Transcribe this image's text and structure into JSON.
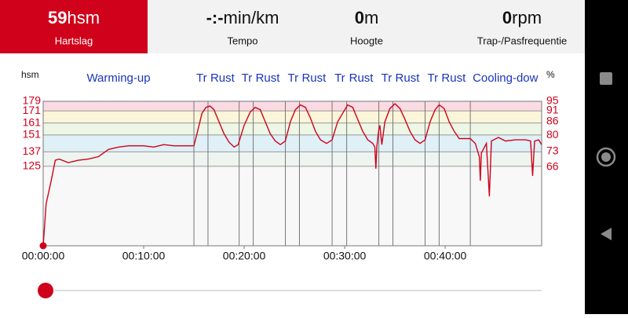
{
  "header": {
    "stats": [
      {
        "value": "59",
        "unit": "hsm",
        "label": "Hartslag"
      },
      {
        "value": "-:-",
        "unit": "min/km",
        "label": "Tempo"
      },
      {
        "value": "0",
        "unit": "m",
        "label": "Hoogte"
      },
      {
        "value": "0",
        "unit": "rpm",
        "label": "Trap-/Pasfrequentie"
      }
    ]
  },
  "chart_data": {
    "type": "line",
    "ylabel": "hsm",
    "y2label": "%",
    "xlim": [
      0,
      49.6
    ],
    "ylim": [
      59,
      179
    ],
    "y2lim": [
      31.3,
      95
    ],
    "xticks": [
      {
        "value": 0,
        "label": "00:00:00"
      },
      {
        "value": 10,
        "label": "00:10:00"
      },
      {
        "value": 20,
        "label": "00:20:00"
      },
      {
        "value": 30,
        "label": "00:30:00"
      },
      {
        "value": 40,
        "label": "00:40:00"
      }
    ],
    "yticks": [
      125,
      137,
      151,
      161,
      171,
      179
    ],
    "y2ticks": [
      66,
      73,
      80,
      86,
      91,
      95
    ],
    "zone_colors": [
      "#f8f8f8",
      "#eef4f0",
      "#dff0f7",
      "#eef6e6",
      "#fbf5d9",
      "#fbdbe3"
    ],
    "segments": [
      {
        "label": "Warming-up",
        "start": 0
      },
      {
        "label": "Tr",
        "start": 15.0
      },
      {
        "label": "Rust",
        "start": 16.4
      },
      {
        "label": "Tr",
        "start": 19.5
      },
      {
        "label": "Rust",
        "start": 20.9
      },
      {
        "label": "Tr",
        "start": 24.1
      },
      {
        "label": "Rust",
        "start": 25.5
      },
      {
        "label": "Tr",
        "start": 28.75
      },
      {
        "label": "Rust",
        "start": 30.2
      },
      {
        "label": "Tr",
        "start": 33.4
      },
      {
        "label": "Rust",
        "start": 34.8
      },
      {
        "label": "Tr",
        "start": 38.0
      },
      {
        "label": "Rust",
        "start": 39.4
      },
      {
        "label": "Cooling-dow",
        "start": 42.5
      }
    ],
    "x": [
      0,
      0.3,
      0.8,
      1.2,
      1.6,
      2.5,
      3.5,
      4.5,
      5.5,
      6,
      6.5,
      7.5,
      8.5,
      10,
      11,
      12,
      13,
      14,
      15,
      15.3,
      15.8,
      16.2,
      16.6,
      17,
      17.5,
      18,
      18.5,
      19,
      19.4,
      20,
      20.6,
      21.1,
      21.6,
      22.1,
      22.6,
      23.1,
      23.6,
      24.1,
      24.6,
      25.1,
      25.6,
      26.1,
      26.6,
      27.1,
      27.6,
      28.2,
      28.75,
      29.3,
      29.8,
      30.3,
      30.8,
      31.3,
      31.8,
      32.3,
      32.8,
      33.0,
      33.1,
      33.2,
      33.4,
      33.5,
      33.7,
      34,
      34.5,
      35,
      35.5,
      36,
      36.5,
      37,
      37.5,
      38,
      38.5,
      39,
      39.4,
      39.9,
      40.4,
      40.9,
      41.4,
      41.9,
      42.5,
      43,
      43.4,
      43.5,
      43.6,
      44.1,
      44.4,
      44.6,
      45.3,
      46,
      47,
      48,
      48.5,
      48.7,
      48.9,
      49.3,
      49.6
    ],
    "series": [
      {
        "name": "Hartslag",
        "color": "#d0021b",
        "values": [
          59,
          94,
          113,
          130,
          131,
          128,
          130,
          131,
          133,
          136,
          139,
          141,
          142,
          142,
          141,
          143,
          142,
          142,
          142,
          152,
          169,
          174,
          175,
          172,
          162,
          152,
          145,
          141,
          143,
          159,
          170,
          174,
          172,
          162,
          152,
          146,
          143,
          146,
          162,
          172,
          176,
          174,
          165,
          154,
          147,
          144,
          147,
          162,
          169,
          176,
          174,
          164,
          154,
          147,
          144,
          141,
          123,
          141,
          156,
          159,
          143,
          162,
          173,
          177,
          173,
          164,
          154,
          147,
          144,
          147,
          162,
          172,
          176,
          173,
          162,
          154,
          148,
          148,
          148,
          144,
          133,
          113,
          136,
          144,
          100,
          146,
          149,
          146,
          147,
          147,
          146,
          117,
          146,
          147,
          143
        ]
      }
    ]
  }
}
